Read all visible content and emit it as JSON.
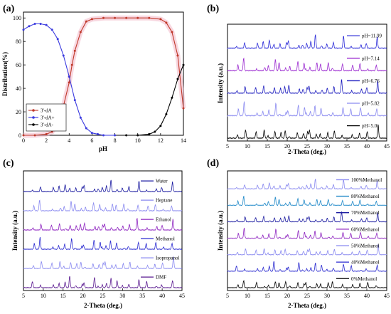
{
  "chart_data": [
    {
      "panel": "(a)",
      "type": "line",
      "xlabel": "pH",
      "ylabel": "Distribution(%)",
      "xlim": [
        0,
        14
      ],
      "ylim": [
        0,
        105
      ],
      "xticks": [
        "0",
        "2",
        "4",
        "6",
        "8",
        "10",
        "12",
        "14"
      ],
      "yticks": [
        "0",
        "20",
        "40",
        "60",
        "80",
        "100"
      ],
      "legend_position": "bottom-left",
      "series": [
        {
          "name": "3'-dA",
          "color": "#c0392b",
          "x": [
            0,
            1,
            2,
            2.5,
            3,
            3.5,
            4,
            4.25,
            4.5,
            5,
            5.5,
            6,
            7,
            8,
            9,
            10,
            11,
            12,
            12.5,
            13,
            13.5,
            14
          ],
          "y": [
            0,
            0,
            1,
            3,
            10,
            25,
            45,
            60,
            72,
            88,
            97,
            99,
            100,
            100,
            100,
            100,
            100,
            99,
            96,
            88,
            68,
            23
          ]
        },
        {
          "name": "3'-dA+",
          "color": "#3a3adf",
          "x": [
            0,
            0.5,
            1,
            1.5,
            2,
            2.5,
            3,
            3.5,
            4,
            4.5,
            5,
            5.5,
            6,
            6.5,
            7,
            8
          ],
          "y": [
            90,
            93,
            95,
            95,
            94,
            90,
            82,
            68,
            50,
            30,
            15,
            6,
            2,
            1,
            0,
            0
          ]
        },
        {
          "name": "3'-dA-",
          "color": "#000000",
          "x": [
            9,
            10,
            11,
            11.5,
            12,
            12.5,
            13,
            13.5,
            14
          ],
          "y": [
            0,
            0,
            1,
            3,
            8,
            18,
            32,
            48,
            60
          ]
        }
      ]
    },
    {
      "panel": "(b)",
      "type": "line",
      "xlabel": "2-Theta (deg.)",
      "ylabel": "Intensity (a.u.)",
      "xlim": [
        5,
        45
      ],
      "xticks": [
        "5",
        "10",
        "15",
        "20",
        "25",
        "30",
        "35",
        "40",
        "45"
      ],
      "series": [
        {
          "name": "pH=11.99",
          "color": "#2b2bd8"
        },
        {
          "name": "pH=7.14",
          "color": "#9b2bd0"
        },
        {
          "name": "pH=6.76",
          "color": "#1d1dbf"
        },
        {
          "name": "pH=5.82",
          "color": "#8a8af0"
        },
        {
          "name": "pH=5.0",
          "color": "#000000"
        }
      ]
    },
    {
      "panel": "(c)",
      "type": "line",
      "xlabel": "2-Theta (deg.)",
      "ylabel": "Intensity (a.u.)",
      "xlim": [
        5,
        45
      ],
      "xticks": [
        "5",
        "10",
        "15",
        "20",
        "25",
        "30",
        "35",
        "40",
        "45"
      ],
      "series": [
        {
          "name": "Water",
          "color": "#1a1aa0"
        },
        {
          "name": "Heptane",
          "color": "#8a8af0"
        },
        {
          "name": "Ethanol",
          "color": "#8e24c0"
        },
        {
          "name": "Methanol",
          "color": "#2a2ad0"
        },
        {
          "name": "Isopropanol",
          "color": "#8a8af0"
        },
        {
          "name": "DMF",
          "color": "#5a1a90"
        }
      ]
    },
    {
      "panel": "(d)",
      "type": "line",
      "xlabel": "2-Theta (deg.)",
      "ylabel": "Intensity (a.u.)",
      "xlim": [
        5,
        45
      ],
      "xticks": [
        "5",
        "10",
        "15",
        "20",
        "25",
        "30",
        "35",
        "40",
        "45"
      ],
      "series": [
        {
          "name": "100%Methanol",
          "color": "#8a8af0"
        },
        {
          "name": "80%Methanol",
          "color": "#1e88c8"
        },
        {
          "name": "70%Methanol",
          "color": "#1a1aa0"
        },
        {
          "name": "60%Methanol",
          "color": "#8e24c0"
        },
        {
          "name": "50%Methanol",
          "color": "#8a8af0"
        },
        {
          "name": "40%Methanol",
          "color": "#2a2ad0"
        },
        {
          "name": "0%Methanol",
          "color": "#000000"
        }
      ]
    }
  ]
}
